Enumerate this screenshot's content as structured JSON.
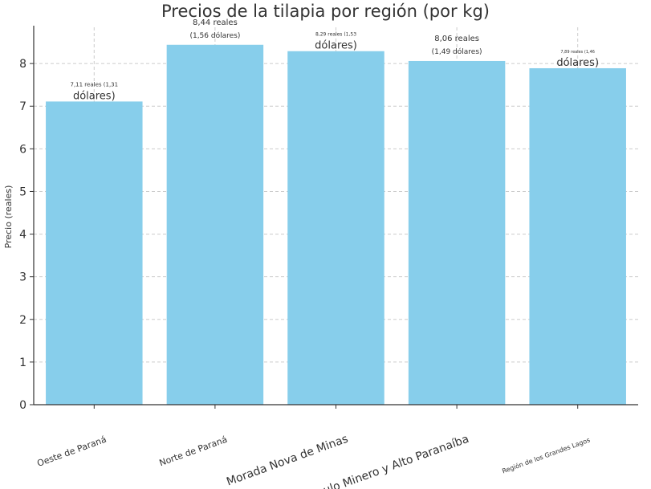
{
  "chart_data": {
    "type": "bar",
    "title": "Precios de la tilapia por región (por kg)",
    "xlabel": "",
    "ylabel": "Precio (reales)",
    "ylim": [
      0,
      8.85
    ],
    "yticks": [
      0,
      1,
      2,
      3,
      4,
      5,
      6,
      7,
      8
    ],
    "grid": true,
    "bar_color": "#87CEEB",
    "categories": [
      "Oeste de Paraná",
      "Norte de Paraná",
      "Morada Nova de Minas",
      "Triángulo Minero y Alto Paranaíba",
      "Región de los Grandes Lagos"
    ],
    "values": [
      7.11,
      8.44,
      8.29,
      8.06,
      7.89
    ],
    "annotations": [
      [
        "7,11 reales (1,31",
        "dólares)"
      ],
      [
        "8,44 reales",
        "(1,56 dólares)"
      ],
      [
        "8,29 reales (1,53",
        "dólares)"
      ],
      [
        "8,06 reales",
        "(1,49 dólares)"
      ],
      [
        "7,89 reales (1,46",
        "dólares)"
      ]
    ]
  }
}
